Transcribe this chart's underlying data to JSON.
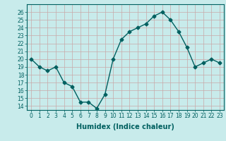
{
  "x": [
    0,
    1,
    2,
    3,
    4,
    5,
    6,
    7,
    8,
    9,
    10,
    11,
    12,
    13,
    14,
    15,
    16,
    17,
    18,
    19,
    20,
    21,
    22,
    23
  ],
  "y": [
    20,
    19,
    18.5,
    19,
    17,
    16.5,
    14.5,
    14.5,
    13.7,
    15.5,
    20,
    22.5,
    23.5,
    24,
    24.5,
    25.5,
    26,
    25,
    23.5,
    21.5,
    19,
    19.5,
    20,
    19.5
  ],
  "line_color": "#006060",
  "marker": "D",
  "marker_size": 2.5,
  "bg_color": "#c8ebeb",
  "grid_color": "#c8a8a8",
  "xlabel": "Humidex (Indice chaleur)",
  "xlabel_fontsize": 7,
  "ylim": [
    13.5,
    27
  ],
  "xlim": [
    -0.5,
    23.5
  ],
  "yticks": [
    14,
    15,
    16,
    17,
    18,
    19,
    20,
    21,
    22,
    23,
    24,
    25,
    26
  ],
  "xticks": [
    0,
    1,
    2,
    3,
    4,
    5,
    6,
    7,
    8,
    9,
    10,
    11,
    12,
    13,
    14,
    15,
    16,
    17,
    18,
    19,
    20,
    21,
    22,
    23
  ],
  "tick_fontsize": 5.5,
  "line_width": 1.0
}
